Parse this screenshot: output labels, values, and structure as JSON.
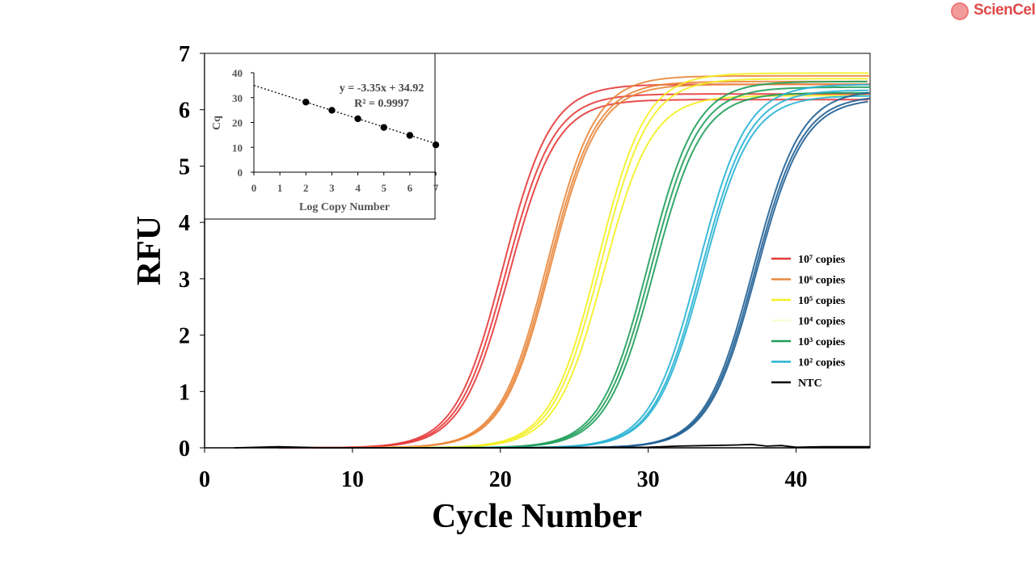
{
  "brand": {
    "name": "ScienCell",
    "icon": "sciencell-logo-icon",
    "color": "#e04a4a"
  },
  "chart_data": {
    "type": "line",
    "xlabel": "Cycle Number",
    "ylabel": "RFU",
    "xlim": [
      0,
      45
    ],
    "ylim": [
      0,
      7
    ],
    "xticks": [
      "0",
      "10",
      "20",
      "30",
      "40"
    ],
    "yticks": [
      "0",
      "1",
      "2",
      "3",
      "4",
      "5",
      "6",
      "7"
    ],
    "grid": false,
    "legend_position": "right",
    "series": [
      {
        "name": "10⁷ copies",
        "color": "#e53a3a",
        "replicates": [
          {
            "cq": 17.0,
            "plateau": 6.45
          },
          {
            "cq": 17.2,
            "plateau": 6.28
          },
          {
            "cq": 17.4,
            "plateau": 6.18
          }
        ]
      },
      {
        "name": "10⁶ copies",
        "color": "#e9883d",
        "replicates": [
          {
            "cq": 20.0,
            "plateau": 6.6
          },
          {
            "cq": 20.1,
            "plateau": 6.5
          },
          {
            "cq": 20.2,
            "plateau": 6.45
          }
        ]
      },
      {
        "name": "10⁵ copies",
        "color": "#f4f024",
        "replicates": [
          {
            "cq": 23.4,
            "plateau": 6.65
          },
          {
            "cq": 23.6,
            "plateau": 6.55
          },
          {
            "cq": 23.8,
            "plateau": 6.25
          }
        ]
      },
      {
        "name": "10⁴ copies",
        "color": "#fbfbd8",
        "replicates": []
      },
      {
        "name": "10³ copies",
        "color": "#1f9e5a",
        "replicates": [
          {
            "cq": 26.8,
            "plateau": 6.5
          },
          {
            "cq": 27.0,
            "plateau": 6.4
          },
          {
            "cq": 27.2,
            "plateau": 6.3
          }
        ]
      },
      {
        "name": "10² copies",
        "color": "#28b2d4",
        "replicates": [
          {
            "cq": 30.2,
            "plateau": 6.45
          },
          {
            "cq": 30.4,
            "plateau": 6.35
          },
          {
            "cq": 30.5,
            "plateau": 6.25
          }
        ]
      },
      {
        "name": "NTC",
        "color": "#000000",
        "replicates": []
      },
      {
        "name": "",
        "color": "#1f5f93",
        "replicates": [
          {
            "cq": 33.9,
            "plateau": 6.35
          },
          {
            "cq": 34.0,
            "plateau": 6.25
          },
          {
            "cq": 34.1,
            "plateau": 6.2
          }
        ]
      }
    ],
    "ntc_line": {
      "x": [
        2,
        5,
        8,
        12,
        20,
        30,
        32,
        34,
        36,
        37,
        38,
        39,
        40,
        42,
        45
      ],
      "y": [
        0,
        0.02,
        0,
        0,
        0,
        0.01,
        0.03,
        0.04,
        0.05,
        0.06,
        0.03,
        0.04,
        0.01,
        0.02,
        0.02
      ]
    },
    "inset": {
      "type": "scatter",
      "xlabel": "Log Copy Number",
      "ylabel": "Cq",
      "xlim": [
        0,
        7
      ],
      "ylim": [
        0,
        40
      ],
      "xticks": [
        "0",
        "1",
        "2",
        "3",
        "4",
        "5",
        "6",
        "7"
      ],
      "yticks": [
        "0",
        "10",
        "20",
        "30",
        "40"
      ],
      "points": [
        {
          "x": 2,
          "y": 28.2
        },
        {
          "x": 3,
          "y": 24.9
        },
        {
          "x": 4,
          "y": 21.5
        },
        {
          "x": 5,
          "y": 18.0
        },
        {
          "x": 6,
          "y": 14.8
        },
        {
          "x": 7,
          "y": 11.0
        }
      ],
      "trendline": {
        "slope": -3.35,
        "intercept": 34.92
      },
      "equation": "y = -3.35x + 34.92",
      "r_squared": "R² = 0.9997"
    }
  }
}
